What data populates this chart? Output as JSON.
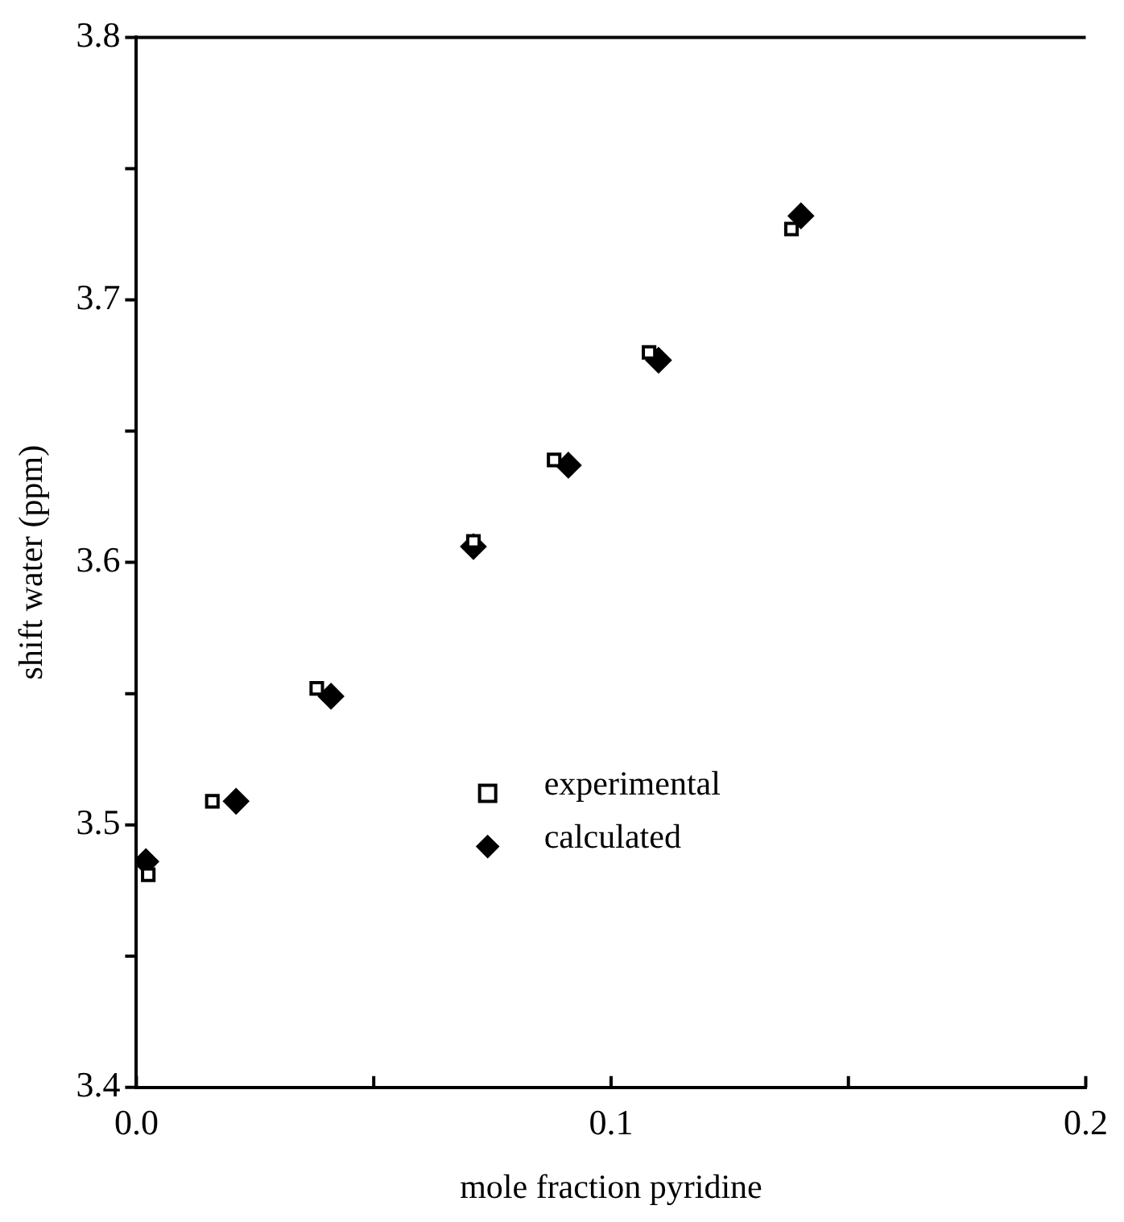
{
  "chart_data": {
    "type": "scatter",
    "xlabel": "mole fraction pyridine",
    "ylabel": "shift water (ppm)",
    "xlim": [
      0,
      0.2
    ],
    "xticks": [
      {
        "value": 0,
        "label": "0.0"
      },
      {
        "value": 0.05,
        "label": null
      },
      0.1,
      {
        "value": 0.15,
        "label": null
      },
      0.2
    ],
    "ylim": [
      3.4,
      3.8
    ],
    "yticks": [
      3.4,
      {
        "value": 3.45,
        "label": null
      },
      3.5,
      {
        "value": 3.55,
        "label": null
      },
      3.6,
      {
        "value": 3.65,
        "label": null
      },
      3.7,
      {
        "value": 3.75,
        "label": null
      },
      3.8
    ],
    "grid": false,
    "legend": "bottom",
    "series": [
      {
        "name": "experimental",
        "color": "#000000",
        "marker": "square",
        "x": [
          0.0025,
          0.016,
          0.038,
          0.071,
          0.088,
          0.108,
          0.138
        ],
        "values": [
          3.481,
          3.509,
          3.552,
          3.608,
          3.639,
          3.68,
          3.727
        ]
      },
      {
        "name": "calculated",
        "color": "#000000",
        "marker": "diamond",
        "x": [
          0.002,
          0.021,
          0.041,
          0.071,
          0.091,
          0.11,
          0.14
        ],
        "values": [
          3.486,
          3.509,
          3.549,
          3.606,
          3.637,
          3.677,
          3.732
        ]
      }
    ]
  }
}
